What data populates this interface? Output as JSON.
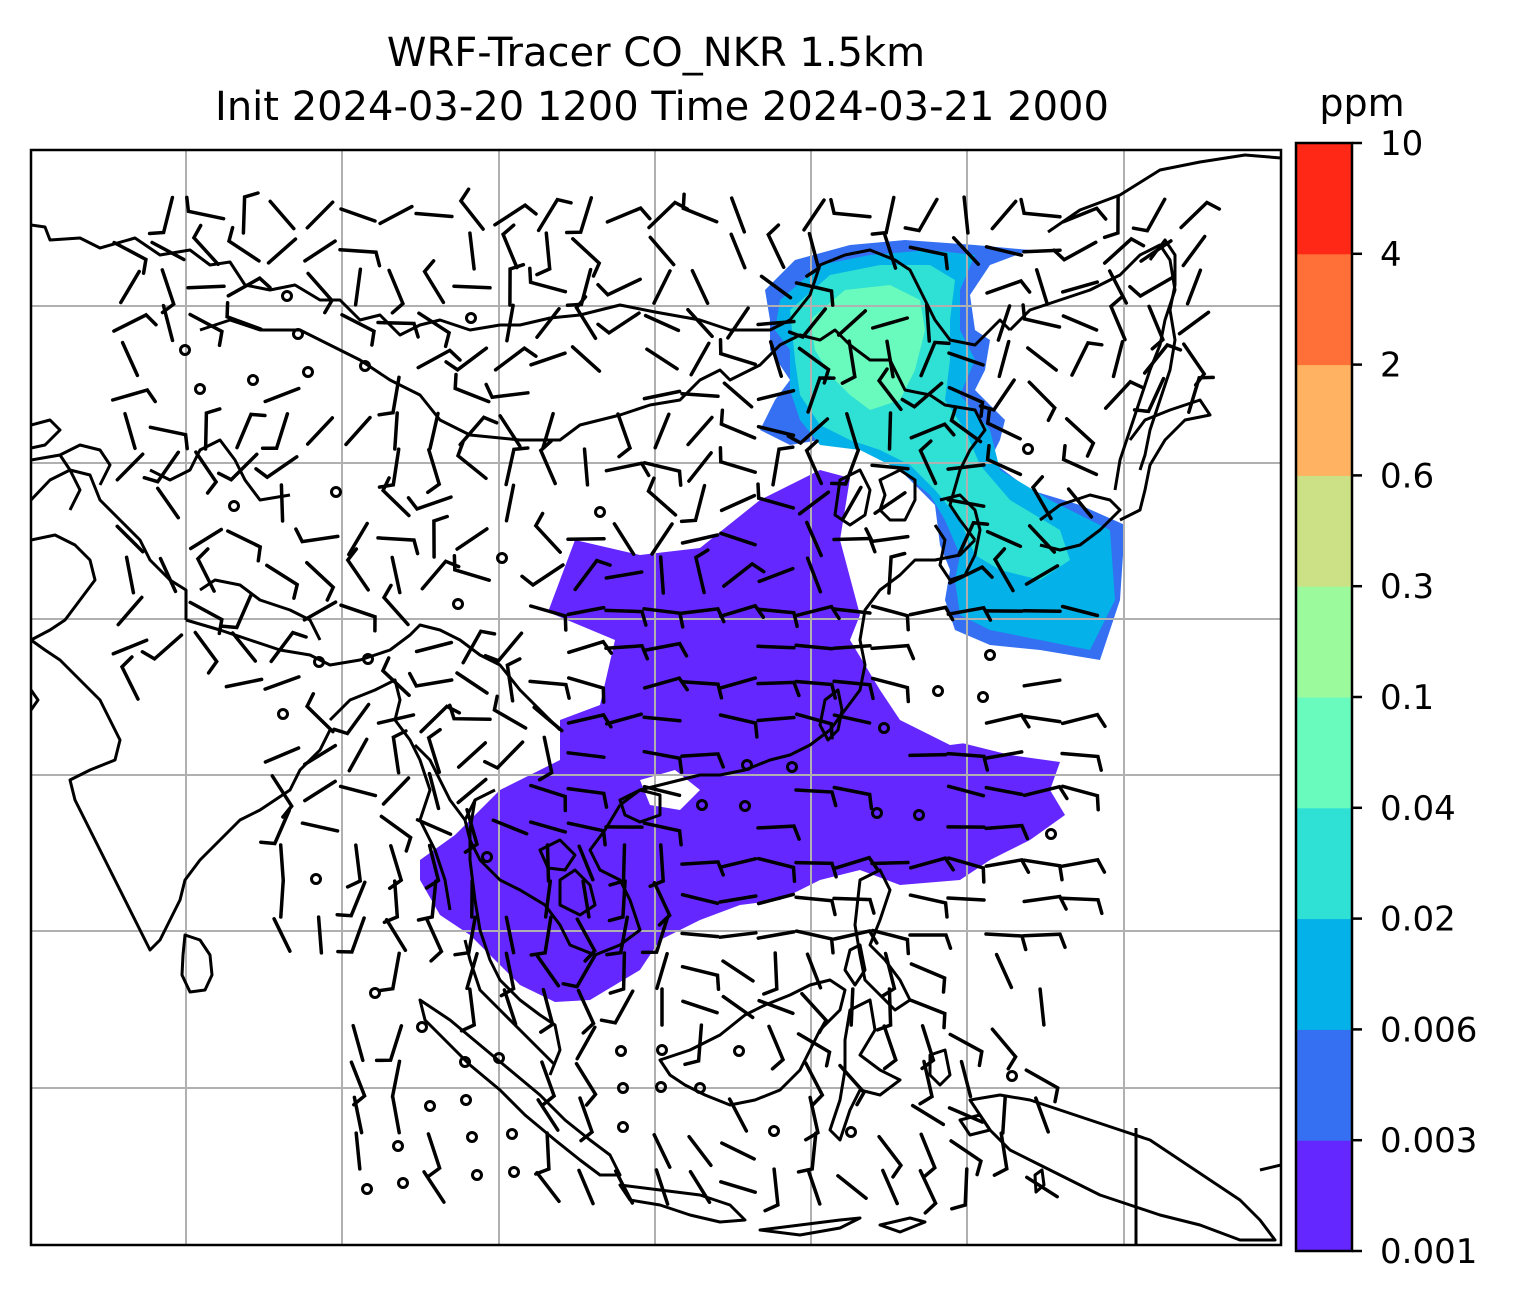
{
  "title": {
    "line1": "WRF-Tracer CO_NKR 1.5km",
    "line2": "Init 2024-03-20 1200 Time 2024-03-21 2000"
  },
  "colorbar": {
    "unit": "ppm",
    "levels": [
      "0.001",
      "0.003",
      "0.006",
      "0.02",
      "0.04",
      "0.1",
      "0.3",
      "0.6",
      "2",
      "4",
      "10"
    ],
    "colors": [
      "#6427ff",
      "#3570f3",
      "#04b1e8",
      "#2fe0d5",
      "#69fbbd",
      "#9bfb9c",
      "#cce085",
      "#ffb261",
      "#ff7039",
      "#ff2716"
    ]
  },
  "map": {
    "gridlines": true,
    "tracer_regions": [
      {
        "level": "0.001-0.003",
        "color": "#6427ff"
      },
      {
        "level": "0.006-0.02",
        "color": "#04b1e8"
      },
      {
        "level": "0.02-0.04",
        "color": "#2fe0d5"
      },
      {
        "level": "0.04-0.1",
        "color": "#69fbbd"
      }
    ],
    "icons": [
      "wind-barb-icon",
      "calm-circle-icon"
    ]
  }
}
